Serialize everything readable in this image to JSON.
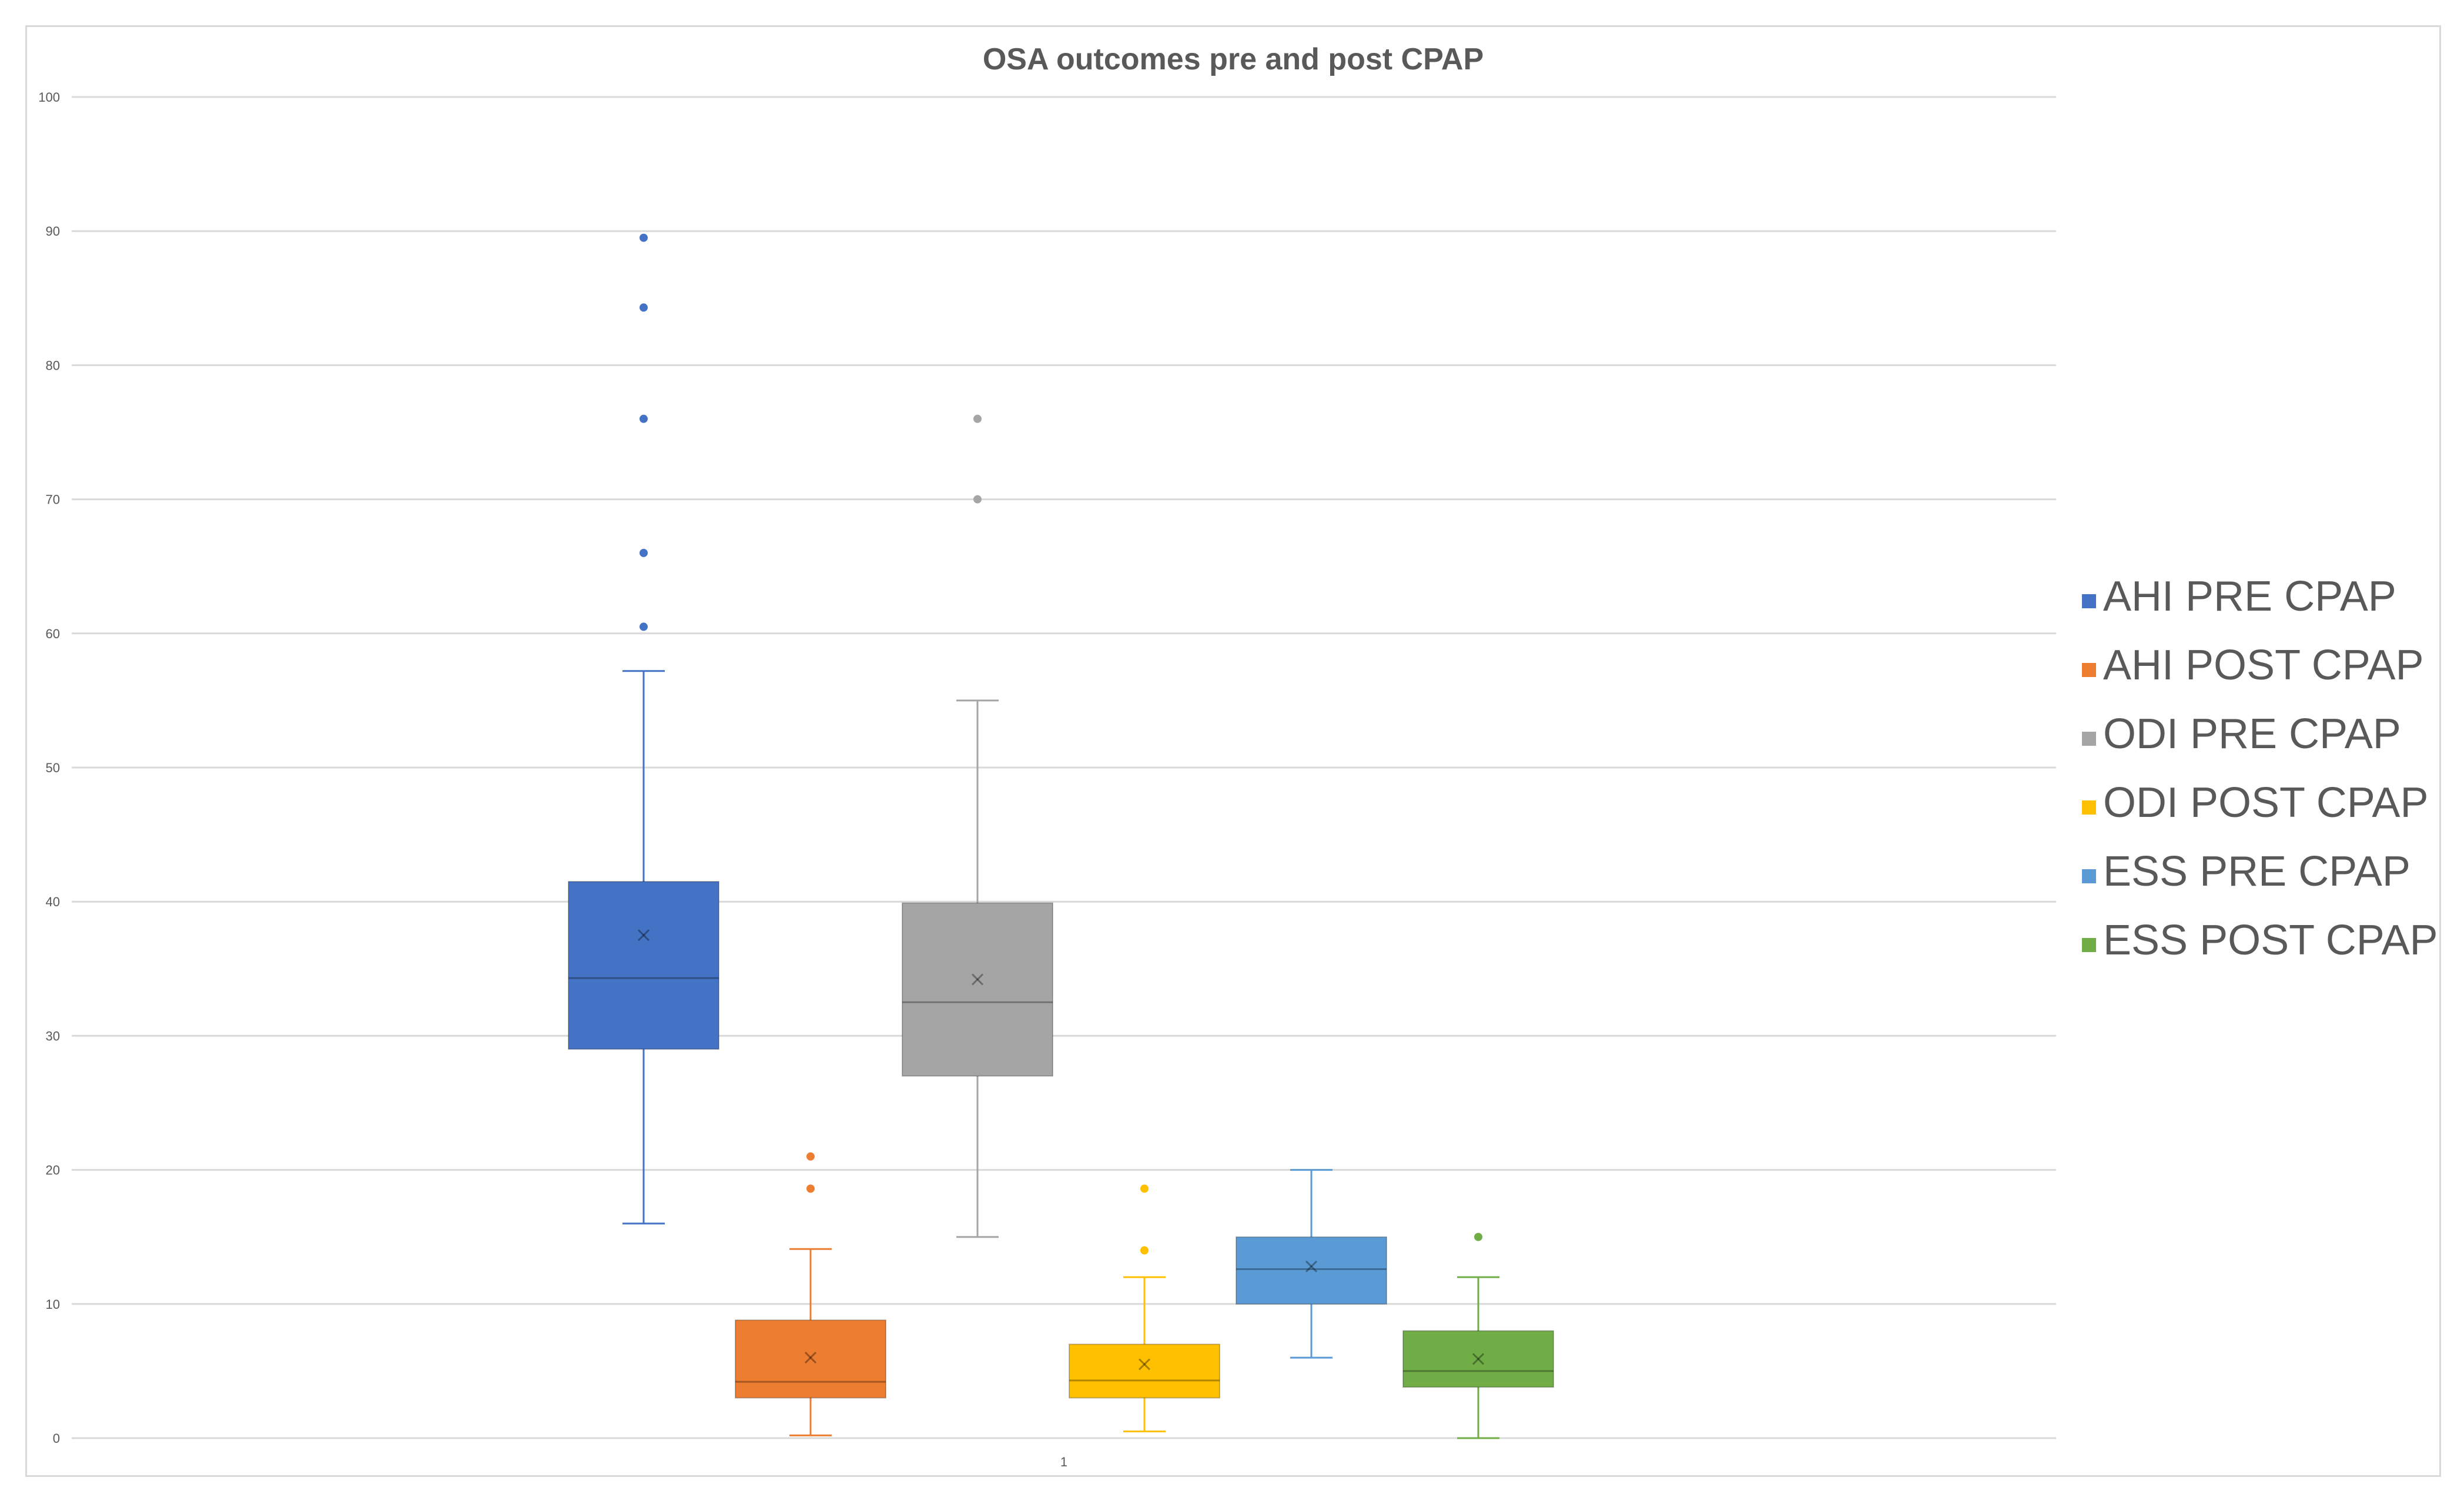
{
  "chart_data": {
    "type": "boxplot",
    "title": "OSA outcomes pre and post CPAP",
    "xlabel": "",
    "ylabel": "",
    "categories": [
      "1"
    ],
    "ylim": [
      0,
      100
    ],
    "yticks": [
      0,
      10,
      20,
      30,
      40,
      50,
      60,
      70,
      80,
      90,
      100
    ],
    "grid": true,
    "legend_position": "right",
    "series": [
      {
        "name": "AHI PRE CPAP",
        "color": "#4472c4",
        "whisker_low": 16,
        "q1": 29,
        "median": 34.3,
        "q3": 41.5,
        "whisker_high": 57.2,
        "mean": 37.5,
        "outliers": [
          60.5,
          66,
          76,
          84.3,
          89.5
        ]
      },
      {
        "name": "AHI POST CPAP",
        "color": "#ed7d31",
        "whisker_low": 0.2,
        "q1": 3,
        "median": 4.2,
        "q3": 8.8,
        "whisker_high": 14.1,
        "mean": 6,
        "outliers": [
          18.6,
          21
        ]
      },
      {
        "name": "ODI PRE CPAP",
        "color": "#a5a5a5",
        "whisker_low": 15,
        "q1": 27,
        "median": 32.5,
        "q3": 39.9,
        "whisker_high": 55,
        "mean": 34.2,
        "outliers": [
          70,
          76
        ]
      },
      {
        "name": "ODI POST CPAP",
        "color": "#ffc000",
        "whisker_low": 0.5,
        "q1": 3,
        "median": 4.3,
        "q3": 7,
        "whisker_high": 12,
        "mean": 5.5,
        "outliers": [
          14,
          18.6
        ]
      },
      {
        "name": "ESS PRE CPAP",
        "color": "#5b9bd5",
        "whisker_low": 6,
        "q1": 10,
        "median": 12.6,
        "q3": 15,
        "whisker_high": 20,
        "mean": 12.8,
        "outliers": []
      },
      {
        "name": "ESS POST CPAP",
        "color": "#70ad47",
        "whisker_low": 0,
        "q1": 3.8,
        "median": 5,
        "q3": 8,
        "whisker_high": 12,
        "mean": 5.9,
        "outliers": [
          15
        ]
      }
    ]
  }
}
